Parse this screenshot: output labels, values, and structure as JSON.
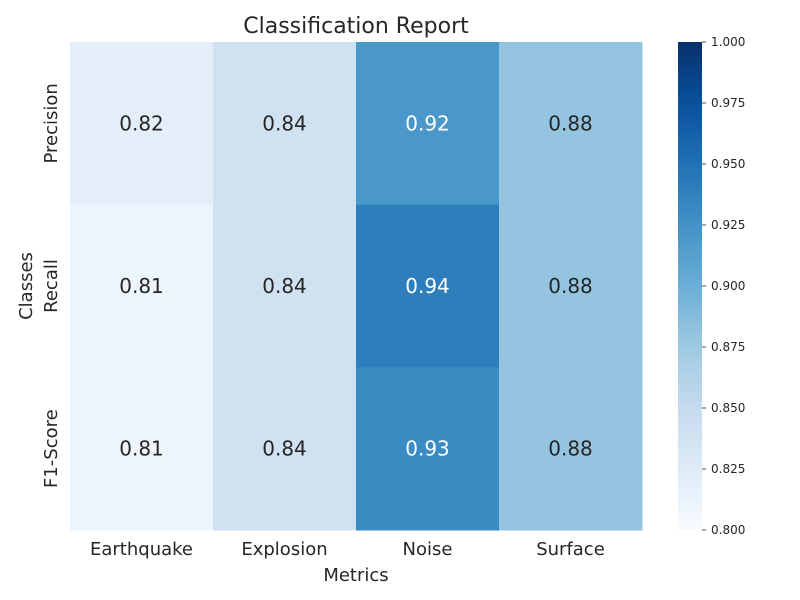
{
  "chart_data": {
    "type": "heatmap",
    "title": "Classification Report",
    "xlabel": "Metrics",
    "ylabel": "Classes",
    "x_categories": [
      "Earthquake",
      "Explosion",
      "Noise",
      "Surface"
    ],
    "y_categories": [
      "Precision",
      "Recall",
      "F1-Score"
    ],
    "values": [
      [
        0.82,
        0.84,
        0.92,
        0.88
      ],
      [
        0.81,
        0.84,
        0.94,
        0.88
      ],
      [
        0.81,
        0.84,
        0.93,
        0.88
      ]
    ],
    "value_labels": [
      [
        "0.82",
        "0.84",
        "0.92",
        "0.88"
      ],
      [
        "0.81",
        "0.84",
        "0.94",
        "0.88"
      ],
      [
        "0.81",
        "0.84",
        "0.93",
        "0.88"
      ]
    ],
    "colorbar": {
      "range": [
        0.8,
        1.0
      ],
      "ticks": [
        0.8,
        0.825,
        0.85,
        0.875,
        0.9,
        0.925,
        0.95,
        0.975,
        1.0
      ],
      "tick_labels": [
        "0.800",
        "0.825",
        "0.850",
        "0.875",
        "0.900",
        "0.925",
        "0.950",
        "0.975",
        "1.000"
      ],
      "colormap": "Blues"
    },
    "grid": false,
    "colors": {
      "low": "#f7fbff",
      "high": "#08306b",
      "dark_text": "#262626",
      "light_text": "#ffffff"
    }
  }
}
